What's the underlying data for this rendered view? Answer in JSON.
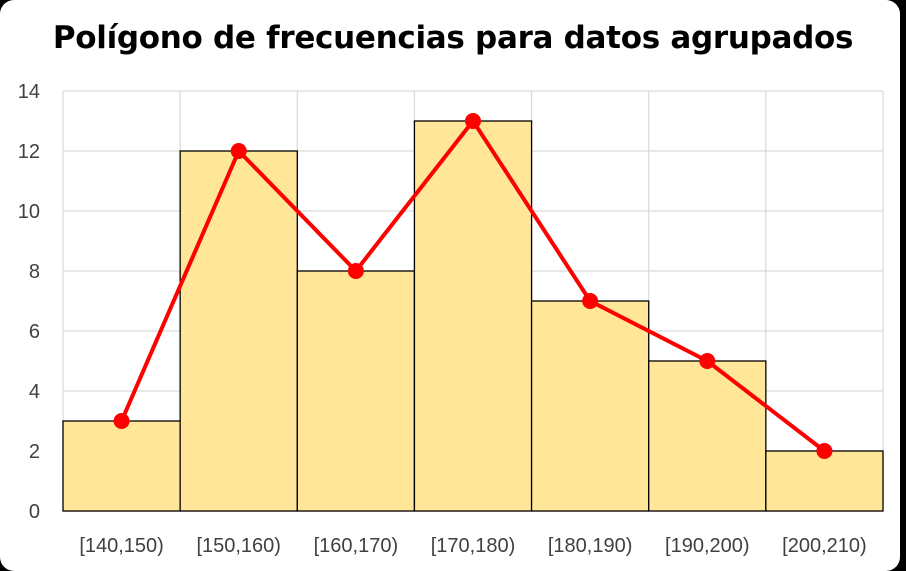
{
  "chart_data": {
    "type": "bar",
    "title": "Polígono de frecuencias para datos agrupados",
    "categories": [
      "[140,150)",
      "[150,160)",
      "[160,170)",
      "[170,180)",
      "[180,190)",
      "[190,200)",
      "[200,210)"
    ],
    "series": [
      {
        "type": "bar",
        "values": [
          3,
          12,
          8,
          13,
          7,
          5,
          2
        ]
      },
      {
        "type": "line",
        "values": [
          3,
          12,
          8,
          13,
          7,
          5,
          2
        ]
      }
    ],
    "xlabel": "",
    "ylabel": "",
    "ylim": [
      0,
      14
    ],
    "yticks": [
      0,
      2,
      4,
      6,
      8,
      10,
      12,
      14
    ],
    "grid": true,
    "legend": "none",
    "colors": {
      "bar_fill": "#FFE699",
      "bar_stroke": "#000000",
      "line": "#FF0000",
      "grid": "#D9D9D9",
      "text": "#404040"
    }
  }
}
